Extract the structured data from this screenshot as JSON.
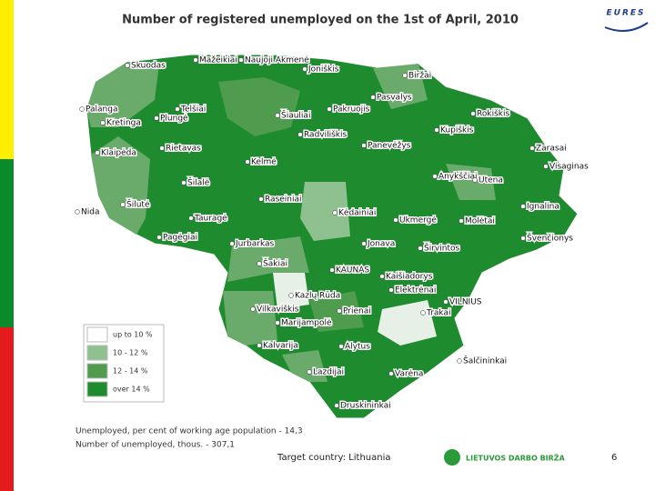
{
  "header": {
    "title": "Number of registered unemployed on the 1st of April, 2010",
    "logo": "EURES"
  },
  "map": {
    "towns": [
      "Skuodas",
      "Mažeikiai",
      "Naujoji Akmenė",
      "Joniškis",
      "Biržai",
      "Pasvalys",
      "Telšiai",
      "Palanga",
      "Kretinga",
      "Plungė",
      "Šiauliai",
      "Pakruojis",
      "Rokiškis",
      "Kupiškis",
      "Radviliškis",
      "Panevėžys",
      "Zarasai",
      "Klaipėda",
      "Rietavas",
      "Kelmė",
      "Visaginas",
      "Anykščiai",
      "Utena",
      "Šilalė",
      "Šilutė",
      "Raseiniai",
      "Kėdainiai",
      "Ukmergė",
      "Molėtai",
      "Ignalina",
      "Nida",
      "Tauragė",
      "Pagėgiai",
      "Jonava",
      "Širvintos",
      "Švenčionys",
      "Jurbarkas",
      "Šakiai",
      "KAUNAS",
      "Kaišiadorys",
      "Elektrėnai",
      "Kazlų Rūda",
      "VILNIUS",
      "Vilkaviškis",
      "Prienai",
      "Trakai",
      "Marijampolė",
      "Kalvarija",
      "Alytus",
      "Šalčininkai",
      "Lazdijai",
      "Varėna",
      "Druskininkai"
    ]
  },
  "legend": {
    "items": [
      "up to 10 %",
      "10 - 12 %",
      "12 - 14 %",
      "over 14 %"
    ]
  },
  "notes": [
    "Unemployed, per cent of working age population - 14,3",
    "Number of unemployed, thous. - 307,1"
  ],
  "footer": {
    "target": "Target country: Lithuania",
    "org": "LIETUVOS DARBO BIRŽA",
    "page": "6"
  }
}
